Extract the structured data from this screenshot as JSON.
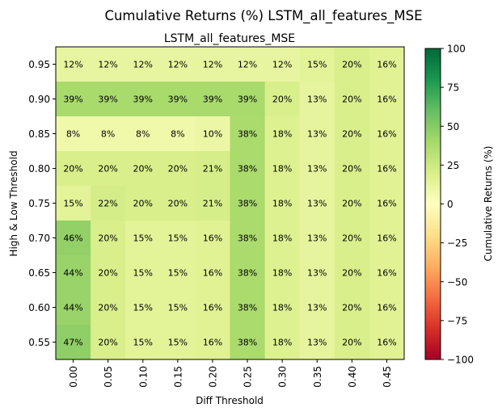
{
  "chart_data": {
    "type": "heatmap",
    "title": "Cumulative Returns (%) LSTM_all_features_MSE",
    "subtitle": "LSTM_all_features_MSE",
    "xlabel": "Diff Threshold",
    "ylabel": "High & Low Threshold",
    "x_categories": [
      "0.00",
      "0.05",
      "0.10",
      "0.15",
      "0.20",
      "0.25",
      "0.30",
      "0.35",
      "0.40",
      "0.45"
    ],
    "y_categories": [
      "0.95",
      "0.90",
      "0.85",
      "0.80",
      "0.75",
      "0.70",
      "0.65",
      "0.60",
      "0.55"
    ],
    "values": [
      [
        12,
        12,
        12,
        12,
        12,
        12,
        12,
        15,
        20,
        16
      ],
      [
        39,
        39,
        39,
        39,
        39,
        39,
        20,
        13,
        20,
        16
      ],
      [
        8,
        8,
        8,
        8,
        10,
        38,
        18,
        13,
        20,
        16
      ],
      [
        20,
        20,
        20,
        20,
        21,
        38,
        18,
        13,
        20,
        16
      ],
      [
        15,
        22,
        20,
        20,
        21,
        38,
        18,
        13,
        20,
        16
      ],
      [
        46,
        20,
        15,
        15,
        16,
        38,
        18,
        13,
        20,
        16
      ],
      [
        44,
        20,
        15,
        15,
        16,
        38,
        18,
        13,
        20,
        16
      ],
      [
        44,
        20,
        15,
        15,
        16,
        38,
        18,
        13,
        20,
        16
      ],
      [
        47,
        20,
        15,
        15,
        16,
        38,
        18,
        13,
        20,
        16
      ]
    ],
    "cell_labels": [
      [
        "12%",
        "12%",
        "12%",
        "12%",
        "12%",
        "12%",
        "12%",
        "15%",
        "20%",
        "16%"
      ],
      [
        "39%",
        "39%",
        "39%",
        "39%",
        "39%",
        "39%",
        "20%",
        "13%",
        "20%",
        "16%"
      ],
      [
        "8%",
        "8%",
        "8%",
        "8%",
        "10%",
        "38%",
        "18%",
        "13%",
        "20%",
        "16%"
      ],
      [
        "20%",
        "20%",
        "20%",
        "20%",
        "21%",
        "38%",
        "18%",
        "13%",
        "20%",
        "16%"
      ],
      [
        "15%",
        "22%",
        "20%",
        "20%",
        "21%",
        "38%",
        "18%",
        "13%",
        "20%",
        "16%"
      ],
      [
        "46%",
        "20%",
        "15%",
        "15%",
        "16%",
        "38%",
        "18%",
        "13%",
        "20%",
        "16%"
      ],
      [
        "44%",
        "20%",
        "15%",
        "15%",
        "16%",
        "38%",
        "18%",
        "13%",
        "20%",
        "16%"
      ],
      [
        "44%",
        "20%",
        "15%",
        "15%",
        "16%",
        "38%",
        "18%",
        "13%",
        "20%",
        "16%"
      ],
      [
        "47%",
        "20%",
        "15%",
        "15%",
        "16%",
        "38%",
        "18%",
        "13%",
        "20%",
        "16%"
      ]
    ],
    "colormap": "RdYlGn",
    "vmin": -100,
    "vmax": 100,
    "colorbar": {
      "label": "Cumulative Returns (%)",
      "ticks": [
        100,
        75,
        50,
        25,
        0,
        -25,
        -50,
        -75,
        -100
      ],
      "tick_labels": [
        "100",
        "75",
        "50",
        "25",
        "0",
        "−25",
        "−50",
        "−75",
        "−100"
      ]
    },
    "grid": false
  }
}
